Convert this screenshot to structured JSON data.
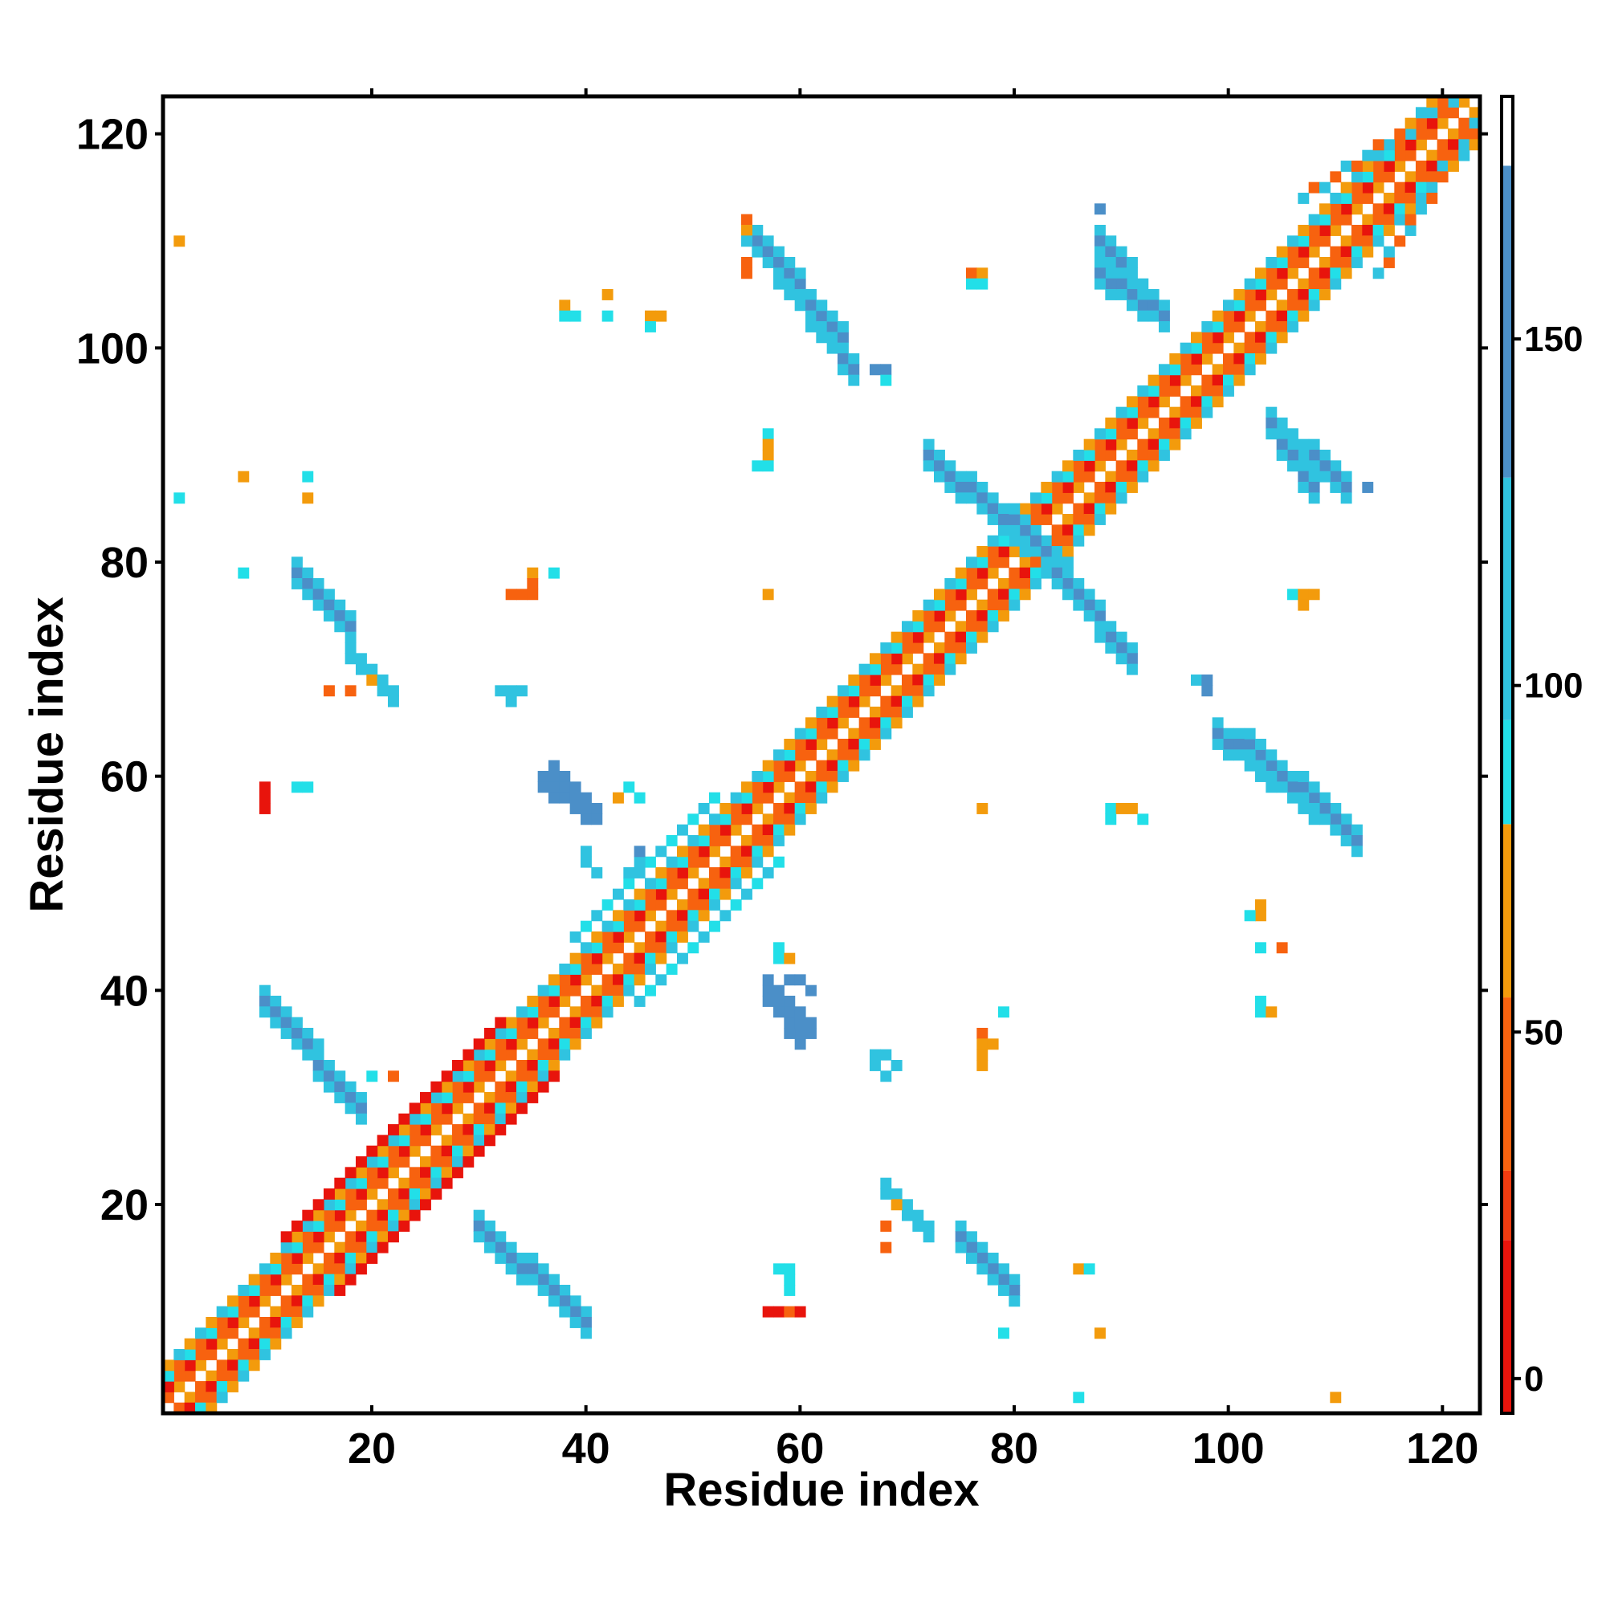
{
  "chart_data": {
    "type": "heatmap",
    "title": "",
    "xlabel": "Residue index",
    "ylabel": "Residue index",
    "xlim": [
      0.5,
      123.5
    ],
    "ylim": [
      0.5,
      123.5
    ],
    "x_ticks": [
      "20",
      "40",
      "60",
      "80",
      "100",
      "120"
    ],
    "x_tick_values": [
      20,
      40,
      60,
      80,
      100,
      120
    ],
    "y_ticks": [
      "20",
      "40",
      "60",
      "80",
      "100",
      "120"
    ],
    "y_tick_values": [
      20,
      40,
      60,
      80,
      100,
      120
    ],
    "grid": false,
    "legend": "none",
    "colorbar": {
      "placement": "right",
      "range": [
        -5,
        185
      ],
      "tick_labels": [
        "0",
        "50",
        "100",
        "150"
      ],
      "tick_values": [
        0,
        50,
        100,
        150
      ],
      "bins": [
        {
          "from": -5,
          "to": 20,
          "color": "#e8140c"
        },
        {
          "from": 20,
          "to": 30,
          "color": "#f23c10"
        },
        {
          "from": 30,
          "to": 55,
          "color": "#f7620f"
        },
        {
          "from": 55,
          "to": 80,
          "color": "#f39b0c"
        },
        {
          "from": 80,
          "to": 95,
          "color": "#22dfe8"
        },
        {
          "from": 95,
          "to": 130,
          "color": "#30c3e0"
        },
        {
          "from": 130,
          "to": 175,
          "color": "#4b8fc8"
        },
        {
          "from": 175,
          "to": 185,
          "color": "#ffffff"
        }
      ]
    },
    "segments": [
      {
        "i0": 2,
        "j0": 1,
        "i1": 123,
        "j1": 122,
        "h0": 1,
        "h1": 1,
        "v": 40,
        "v2": 55,
        "mode": "alt"
      },
      {
        "i0": 3,
        "j0": 1,
        "i1": 123,
        "j1": 121,
        "h0": 1,
        "h1": 1,
        "v": 10,
        "v2": 45,
        "mode": "alt"
      },
      {
        "i0": 4,
        "j0": 1,
        "i1": 123,
        "j1": 120,
        "h0": 1,
        "h1": 1,
        "v": 90,
        "v2": 40,
        "mode": "alt"
      },
      {
        "i0": 5,
        "j0": 1,
        "i1": 123,
        "j1": 119,
        "h0": 1,
        "h1": 1,
        "v": 70,
        "v2": 105,
        "mode": "alt"
      },
      {
        "i0": 1,
        "j0": 2,
        "i1": 122,
        "j1": 123,
        "h0": 1,
        "h1": 1,
        "v": 40,
        "v2": 55,
        "mode": "alt"
      },
      {
        "i0": 1,
        "j0": 3,
        "i1": 121,
        "j1": 123,
        "h0": 1,
        "h1": 1,
        "v": 10,
        "v2": 45,
        "mode": "alt"
      },
      {
        "i0": 1,
        "j0": 4,
        "i1": 120,
        "j1": 123,
        "h0": 1,
        "h1": 1,
        "v": 90,
        "v2": 40,
        "mode": "alt"
      },
      {
        "i0": 1,
        "j0": 5,
        "i1": 119,
        "j1": 123,
        "h0": 1,
        "h1": 1,
        "v": 70,
        "v2": 105,
        "mode": "alt"
      },
      {
        "i0": 17,
        "j0": 12,
        "i1": 37,
        "j1": 32,
        "h0": 1,
        "h1": 1,
        "v": 5,
        "v2": 15,
        "mode": "alt"
      },
      {
        "i0": 12,
        "j0": 17,
        "i1": 32,
        "j1": 37,
        "h0": 1,
        "h1": 1,
        "v": 5,
        "v2": 15,
        "mode": "alt"
      },
      {
        "i0": 39,
        "j0": 45,
        "i1": 52,
        "j1": 58,
        "h0": 1,
        "h1": 1,
        "v": 100,
        "v2": 85,
        "mode": "alt"
      },
      {
        "i0": 45,
        "j0": 39,
        "i1": 58,
        "j1": 52,
        "h0": 1,
        "h1": 1,
        "v": 100,
        "v2": 85,
        "mode": "alt"
      },
      {
        "i0": 107,
        "j0": 114,
        "i1": 121,
        "j1": 123,
        "h0": 1,
        "h1": 1,
        "v": 100,
        "v2": 45,
        "mode": "alt"
      },
      {
        "i0": 114,
        "j0": 107,
        "i1": 123,
        "j1": 121,
        "h0": 1,
        "h1": 1,
        "v": 100,
        "v2": 45,
        "mode": "alt"
      },
      {
        "i0": 10,
        "j0": 40,
        "i1": 19,
        "j1": 30,
        "h0": 3,
        "h1": 3,
        "v": 150,
        "v2": 110,
        "mode": "band"
      },
      {
        "i0": 40,
        "j0": 10,
        "i1": 30,
        "j1": 19,
        "h0": 3,
        "h1": 3,
        "v": 150,
        "v2": 110,
        "mode": "band"
      },
      {
        "i0": 13,
        "j0": 80,
        "i1": 18,
        "j1": 75,
        "h0": 3,
        "h1": 3,
        "v": 150,
        "v2": 110,
        "mode": "band"
      },
      {
        "i0": 80,
        "j0": 13,
        "i1": 75,
        "j1": 18,
        "h0": 3,
        "h1": 3,
        "v": 150,
        "v2": 110,
        "mode": "band"
      },
      {
        "i0": 18,
        "j0": 72,
        "i1": 22,
        "j1": 68,
        "h0": 2,
        "h1": 2,
        "v": 140,
        "v2": 110,
        "mode": "band"
      },
      {
        "i0": 72,
        "j0": 18,
        "i1": 68,
        "j1": 22,
        "h0": 2,
        "h1": 2,
        "v": 140,
        "v2": 110,
        "mode": "band"
      },
      {
        "i0": 56,
        "j0": 111,
        "i1": 65,
        "j1": 99,
        "h0": 3,
        "h1": 3,
        "v": 150,
        "v2": 110,
        "mode": "band"
      },
      {
        "i0": 111,
        "j0": 56,
        "i1": 99,
        "j1": 65,
        "h0": 3,
        "h1": 3,
        "v": 150,
        "v2": 110,
        "mode": "band"
      },
      {
        "i0": 72,
        "j0": 91,
        "i1": 85,
        "j1": 80,
        "h0": 3,
        "h1": 3,
        "v": 150,
        "v2": 110,
        "mode": "band"
      },
      {
        "i0": 91,
        "j0": 72,
        "i1": 80,
        "j1": 85,
        "h0": 3,
        "h1": 3,
        "v": 150,
        "v2": 110,
        "mode": "band"
      },
      {
        "i0": 88,
        "j0": 111,
        "i1": 94,
        "j1": 104,
        "h0": 3,
        "h1": 3,
        "v": 150,
        "v2": 110,
        "mode": "band"
      },
      {
        "i0": 111,
        "j0": 88,
        "i1": 104,
        "j1": 94,
        "h0": 3,
        "h1": 3,
        "v": 150,
        "v2": 110,
        "mode": "band"
      },
      {
        "i0": 102,
        "j0": 64,
        "i1": 112,
        "j1": 55,
        "h0": 3,
        "h1": 3,
        "v": 150,
        "v2": 110,
        "mode": "band"
      },
      {
        "i0": 64,
        "j0": 102,
        "i1": 55,
        "j1": 112,
        "h0": 3,
        "h1": 3,
        "v": 150,
        "v2": 110,
        "mode": "band"
      },
      {
        "i0": 104,
        "j0": 94,
        "i1": 108,
        "j1": 88,
        "h0": 3,
        "h1": 3,
        "v": 150,
        "v2": 110,
        "mode": "band"
      },
      {
        "i0": 94,
        "j0": 104,
        "i1": 88,
        "j1": 108,
        "h0": 3,
        "h1": 3,
        "v": 150,
        "v2": 110,
        "mode": "band"
      },
      {
        "i0": 36,
        "j0": 60,
        "i1": 40,
        "j1": 57,
        "h0": 2,
        "h1": 2,
        "v": 110,
        "v2": 150,
        "mode": "band"
      },
      {
        "i0": 60,
        "j0": 36,
        "i1": 57,
        "j1": 40,
        "h0": 2,
        "h1": 2,
        "v": 110,
        "v2": 150,
        "mode": "band"
      },
      {
        "i0": 57,
        "j0": 41,
        "i1": 61,
        "j1": 37,
        "h0": 2,
        "h1": 2,
        "v": 110,
        "v2": 150,
        "mode": "band"
      },
      {
        "i0": 41,
        "j0": 57,
        "i1": 37,
        "j1": 61,
        "h0": 2,
        "h1": 2,
        "v": 110,
        "v2": 150,
        "mode": "band"
      }
    ],
    "points": [
      {
        "i": 2,
        "j": 110,
        "v": 70
      },
      {
        "i": 2,
        "j": 86,
        "v": 90
      },
      {
        "i": 8,
        "j": 88,
        "v": 70
      },
      {
        "i": 14,
        "j": 88,
        "v": 90
      },
      {
        "i": 14,
        "j": 86,
        "v": 70
      },
      {
        "i": 8,
        "j": 79,
        "v": 90
      },
      {
        "i": 10,
        "j": 59,
        "v": 10
      },
      {
        "i": 10,
        "j": 58,
        "v": 10
      },
      {
        "i": 10,
        "j": 57,
        "v": 10
      },
      {
        "i": 13,
        "j": 59,
        "v": 90
      },
      {
        "i": 14,
        "j": 59,
        "v": 90
      },
      {
        "i": 16,
        "j": 68,
        "v": 40
      },
      {
        "i": 18,
        "j": 68,
        "v": 40
      },
      {
        "i": 20,
        "j": 69,
        "v": 70
      },
      {
        "i": 20,
        "j": 32,
        "v": 90
      },
      {
        "i": 22,
        "j": 32,
        "v": 40
      },
      {
        "i": 32,
        "j": 68,
        "v": 110
      },
      {
        "i": 33,
        "j": 67,
        "v": 110
      },
      {
        "i": 34,
        "j": 68,
        "v": 110
      },
      {
        "i": 33,
        "j": 68,
        "v": 110
      },
      {
        "i": 33,
        "j": 77,
        "v": 40
      },
      {
        "i": 34,
        "j": 77,
        "v": 40
      },
      {
        "i": 35,
        "j": 77,
        "v": 40
      },
      {
        "i": 35,
        "j": 79,
        "v": 70
      },
      {
        "i": 35,
        "j": 78,
        "v": 40
      },
      {
        "i": 37,
        "j": 79,
        "v": 90
      },
      {
        "i": 38,
        "j": 104,
        "v": 70
      },
      {
        "i": 38,
        "j": 103,
        "v": 90
      },
      {
        "i": 39,
        "j": 103,
        "v": 90
      },
      {
        "i": 42,
        "j": 105,
        "v": 70
      },
      {
        "i": 42,
        "j": 103,
        "v": 90
      },
      {
        "i": 46,
        "j": 103,
        "v": 70
      },
      {
        "i": 47,
        "j": 103,
        "v": 70
      },
      {
        "i": 46,
        "j": 102,
        "v": 90
      },
      {
        "i": 40,
        "j": 53,
        "v": 110
      },
      {
        "i": 40,
        "j": 52,
        "v": 110
      },
      {
        "i": 41,
        "j": 51,
        "v": 110
      },
      {
        "i": 44,
        "j": 51,
        "v": 110
      },
      {
        "i": 45,
        "j": 52,
        "v": 110
      },
      {
        "i": 45,
        "j": 53,
        "v": 140
      },
      {
        "i": 43,
        "j": 58,
        "v": 70
      },
      {
        "i": 44,
        "j": 59,
        "v": 90
      },
      {
        "i": 45,
        "j": 58,
        "v": 90
      },
      {
        "i": 57,
        "j": 92,
        "v": 90
      },
      {
        "i": 57,
        "j": 91,
        "v": 70
      },
      {
        "i": 57,
        "j": 90,
        "v": 70
      },
      {
        "i": 56,
        "j": 89,
        "v": 90
      },
      {
        "i": 57,
        "j": 89,
        "v": 90
      },
      {
        "i": 57,
        "j": 77,
        "v": 70
      },
      {
        "i": 55,
        "j": 112,
        "v": 40
      },
      {
        "i": 55,
        "j": 111,
        "v": 70
      },
      {
        "i": 55,
        "j": 108,
        "v": 40
      },
      {
        "i": 55,
        "j": 107,
        "v": 40
      },
      {
        "i": 67,
        "j": 98,
        "v": 140
      },
      {
        "i": 68,
        "j": 98,
        "v": 140
      },
      {
        "i": 68,
        "j": 97,
        "v": 90
      },
      {
        "i": 76,
        "j": 107,
        "v": 40
      },
      {
        "i": 77,
        "j": 107,
        "v": 70
      },
      {
        "i": 76,
        "j": 106,
        "v": 90
      },
      {
        "i": 77,
        "j": 106,
        "v": 90
      },
      {
        "i": 88,
        "j": 113,
        "v": 140
      },
      {
        "i": 113,
        "j": 87,
        "v": 140
      },
      {
        "i": 97,
        "j": 69,
        "v": 110
      },
      {
        "i": 98,
        "j": 69,
        "v": 140
      },
      {
        "i": 98,
        "j": 68,
        "v": 140
      },
      {
        "i": 106,
        "j": 77,
        "v": 90
      },
      {
        "i": 107,
        "j": 77,
        "v": 70
      },
      {
        "i": 108,
        "j": 77,
        "v": 70
      },
      {
        "i": 107,
        "j": 76,
        "v": 70
      },
      {
        "i": 77,
        "j": 57,
        "v": 70
      },
      {
        "i": 89,
        "j": 57,
        "v": 90
      },
      {
        "i": 90,
        "j": 57,
        "v": 70
      },
      {
        "i": 91,
        "j": 57,
        "v": 70
      },
      {
        "i": 92,
        "j": 56,
        "v": 90
      },
      {
        "i": 89,
        "j": 56,
        "v": 90
      },
      {
        "i": 103,
        "j": 48,
        "v": 70
      },
      {
        "i": 103,
        "j": 47,
        "v": 70
      },
      {
        "i": 102,
        "j": 47,
        "v": 90
      },
      {
        "i": 103,
        "j": 44,
        "v": 90
      },
      {
        "i": 105,
        "j": 44,
        "v": 40
      },
      {
        "i": 103,
        "j": 39,
        "v": 90
      },
      {
        "i": 103,
        "j": 38,
        "v": 90
      },
      {
        "i": 104,
        "j": 38,
        "v": 70
      },
      {
        "i": 79,
        "j": 38,
        "v": 90
      },
      {
        "i": 77,
        "j": 36,
        "v": 40
      },
      {
        "i": 77,
        "j": 35,
        "v": 70
      },
      {
        "i": 78,
        "j": 35,
        "v": 70
      },
      {
        "i": 77,
        "j": 34,
        "v": 70
      },
      {
        "i": 77,
        "j": 33,
        "v": 70
      },
      {
        "i": 67,
        "j": 34,
        "v": 110
      },
      {
        "i": 68,
        "j": 34,
        "v": 110
      },
      {
        "i": 67,
        "j": 33,
        "v": 110
      },
      {
        "i": 68,
        "j": 32,
        "v": 110
      },
      {
        "i": 69,
        "j": 33,
        "v": 110
      },
      {
        "i": 68,
        "j": 18,
        "v": 40
      },
      {
        "i": 68,
        "j": 16,
        "v": 40
      },
      {
        "i": 69,
        "j": 20,
        "v": 70
      },
      {
        "i": 79,
        "j": 8,
        "v": 90
      },
      {
        "i": 86,
        "j": 14,
        "v": 70
      },
      {
        "i": 87,
        "j": 14,
        "v": 90
      },
      {
        "i": 88,
        "j": 8,
        "v": 70
      },
      {
        "i": 86,
        "j": 2,
        "v": 90
      },
      {
        "i": 110,
        "j": 2,
        "v": 70
      },
      {
        "i": 57,
        "j": 10,
        "v": 10
      },
      {
        "i": 58,
        "j": 10,
        "v": 10
      },
      {
        "i": 59,
        "j": 10,
        "v": 40
      },
      {
        "i": 60,
        "j": 10,
        "v": 10
      },
      {
        "i": 58,
        "j": 14,
        "v": 90
      },
      {
        "i": 59,
        "j": 13,
        "v": 90
      },
      {
        "i": 59,
        "j": 14,
        "v": 90
      },
      {
        "i": 59,
        "j": 12,
        "v": 90
      },
      {
        "i": 58,
        "j": 43,
        "v": 90
      },
      {
        "i": 58,
        "j": 44,
        "v": 90
      },
      {
        "i": 59,
        "j": 41,
        "v": 140
      },
      {
        "i": 60,
        "j": 41,
        "v": 140
      },
      {
        "i": 61,
        "j": 40,
        "v": 140
      },
      {
        "i": 59,
        "j": 43,
        "v": 70
      },
      {
        "i": 58,
        "j": 14,
        "v": 90
      }
    ]
  }
}
